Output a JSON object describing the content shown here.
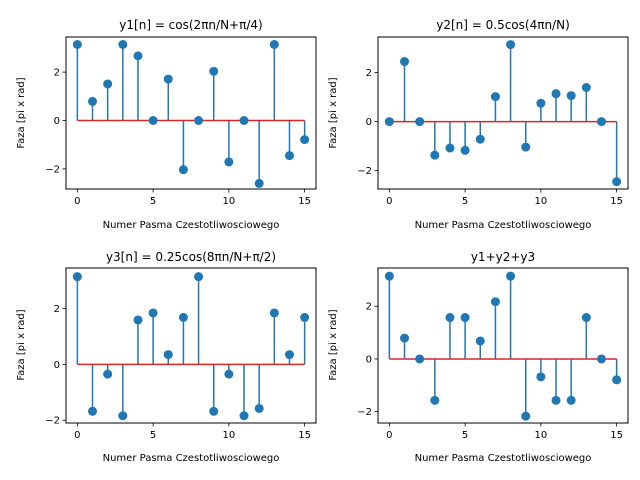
{
  "chart_data": [
    {
      "type": "stem",
      "title": "y1[n] = cos(2πn/N+π/4)",
      "xlabel": "Numer Pasma Czestotliwosciowego",
      "ylabel": "Faza [pi x rad]",
      "xlim": [
        -0.75,
        15.75
      ],
      "ylim": [
        -2.83,
        3.45
      ],
      "xticks": [
        0,
        5,
        10,
        15
      ],
      "yticks": [
        -2,
        0,
        2
      ],
      "x": [
        0,
        1,
        2,
        3,
        4,
        5,
        6,
        7,
        8,
        9,
        10,
        11,
        12,
        13,
        14,
        15
      ],
      "values": [
        3.14,
        0.79,
        1.51,
        3.14,
        2.67,
        0.0,
        1.71,
        -2.03,
        0.0,
        2.03,
        -1.71,
        0.0,
        -2.6,
        3.14,
        -1.45,
        -0.79
      ]
    },
    {
      "type": "stem",
      "title": "y2[n] = 0.5cos(4πn/N)",
      "xlabel": "Numer Pasma Czestotliwosciowego",
      "ylabel": "Faza [pi x rad]",
      "xlim": [
        -0.75,
        15.75
      ],
      "ylim": [
        -2.75,
        3.45
      ],
      "xticks": [
        0,
        5,
        10,
        15
      ],
      "yticks": [
        -2,
        0,
        2
      ],
      "x": [
        0,
        1,
        2,
        3,
        4,
        5,
        6,
        7,
        8,
        9,
        10,
        11,
        12,
        13,
        14,
        15
      ],
      "values": [
        0.0,
        2.45,
        0.0,
        -1.37,
        -1.08,
        -1.17,
        -0.72,
        1.02,
        3.14,
        -1.04,
        0.75,
        1.14,
        1.06,
        1.39,
        0.0,
        -2.45
      ]
    },
    {
      "type": "stem",
      "title": "y3[n] = 0.25cos(8πn/N+π/2)",
      "xlabel": "Numer Pasma Czestotliwosciowego",
      "ylabel": "Faza [pi x rad]",
      "xlim": [
        -0.75,
        15.75
      ],
      "ylim": [
        -2.1,
        3.45
      ],
      "xticks": [
        0,
        5,
        10,
        15
      ],
      "yticks": [
        -2,
        0,
        2
      ],
      "x": [
        0,
        1,
        2,
        3,
        4,
        5,
        6,
        7,
        8,
        9,
        10,
        11,
        12,
        13,
        14,
        15
      ],
      "values": [
        3.14,
        -1.68,
        -0.35,
        -1.84,
        1.59,
        1.84,
        0.35,
        1.68,
        3.14,
        -1.68,
        -0.35,
        -1.84,
        -1.58,
        1.84,
        0.35,
        1.68
      ]
    },
    {
      "type": "stem",
      "title": "y1+y2+y3",
      "xlabel": "Numer Pasma Czestotliwosciowego",
      "ylabel": "Faza [pi x rad]",
      "xlim": [
        -0.75,
        15.75
      ],
      "ylim": [
        -2.43,
        3.45
      ],
      "xticks": [
        0,
        5,
        10,
        15
      ],
      "yticks": [
        -2,
        0,
        2
      ],
      "x": [
        0,
        1,
        2,
        3,
        4,
        5,
        6,
        7,
        8,
        9,
        10,
        11,
        12,
        13,
        14,
        15
      ],
      "values": [
        3.14,
        0.79,
        0.0,
        -1.57,
        1.57,
        1.57,
        0.68,
        2.17,
        3.14,
        -2.17,
        -0.68,
        -1.57,
        -1.57,
        1.57,
        0.0,
        -0.79
      ]
    }
  ],
  "colors": {
    "stem": "#1f77b4",
    "baseline": "#d62728"
  }
}
